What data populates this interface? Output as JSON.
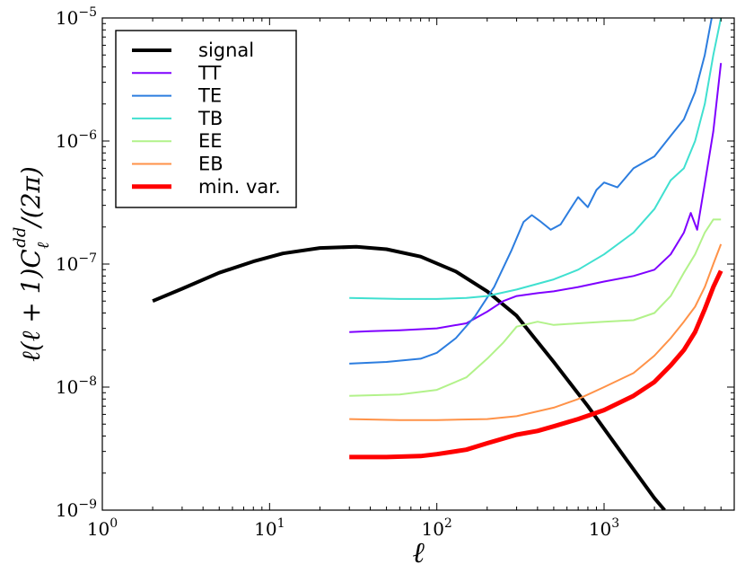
{
  "chart_data": {
    "type": "line",
    "xscale": "log",
    "yscale": "log",
    "xlim": [
      1,
      6000
    ],
    "ylim": [
      1e-09,
      1e-05
    ],
    "xlabel": "ℓ",
    "ylabel": "ℓ(ℓ + 1)C_ℓ^dd/(2π)",
    "xticks": [
      {
        "value": 1,
        "mantissa": "10",
        "exp": "0"
      },
      {
        "value": 10,
        "mantissa": "10",
        "exp": "1"
      },
      {
        "value": 100,
        "mantissa": "10",
        "exp": "2"
      },
      {
        "value": 1000,
        "mantissa": "10",
        "exp": "3"
      }
    ],
    "yticks": [
      {
        "value": 1e-09,
        "mantissa": "10",
        "exp": "−9"
      },
      {
        "value": 1e-08,
        "mantissa": "10",
        "exp": "−8"
      },
      {
        "value": 1e-07,
        "mantissa": "10",
        "exp": "−7"
      },
      {
        "value": 1e-06,
        "mantissa": "10",
        "exp": "−6"
      },
      {
        "value": 1e-05,
        "mantissa": "10",
        "exp": "−5"
      }
    ],
    "legend_position": "top-left",
    "series": [
      {
        "name": "signal",
        "color": "#000000",
        "width": 4,
        "x": [
          2,
          3,
          5,
          8,
          12,
          20,
          33,
          50,
          80,
          130,
          200,
          300,
          500,
          800,
          1300,
          2000,
          2300
        ],
        "y": [
          5e-08,
          6.3e-08,
          8.5e-08,
          1.05e-07,
          1.22e-07,
          1.35e-07,
          1.38e-07,
          1.32e-07,
          1.15e-07,
          8.7e-08,
          6e-08,
          3.8e-08,
          1.6e-08,
          7e-09,
          2.8e-09,
          1.25e-09,
          1e-09
        ]
      },
      {
        "name": "TT",
        "color": "#7f00ff",
        "width": 2,
        "x": [
          30,
          40,
          60,
          100,
          150,
          200,
          250,
          300,
          400,
          500,
          700,
          1000,
          1500,
          2000,
          2500,
          3000,
          3300,
          3600,
          4000,
          4500,
          5000
        ],
        "y": [
          2.8e-08,
          2.85e-08,
          2.9e-08,
          3e-08,
          3.3e-08,
          4.1e-08,
          5e-08,
          5.5e-08,
          5.8e-08,
          6e-08,
          6.5e-08,
          7.2e-08,
          8e-08,
          9e-08,
          1.2e-07,
          1.8e-07,
          2.6e-07,
          1.9e-07,
          4.5e-07,
          1.2e-06,
          4.3e-06
        ]
      },
      {
        "name": "TE",
        "color": "#2c7ddf",
        "width": 2,
        "x": [
          30,
          50,
          80,
          100,
          130,
          170,
          220,
          280,
          330,
          370,
          420,
          480,
          550,
          650,
          700,
          800,
          900,
          1000,
          1200,
          1500,
          2000,
          2500,
          3000,
          3500,
          4000,
          4400
        ],
        "y": [
          1.55e-08,
          1.6e-08,
          1.7e-08,
          1.9e-08,
          2.5e-08,
          3.8e-08,
          6.5e-08,
          1.3e-07,
          2.2e-07,
          2.5e-07,
          2.2e-07,
          1.9e-07,
          2.1e-07,
          3e-07,
          3.5e-07,
          2.9e-07,
          4e-07,
          4.6e-07,
          4.2e-07,
          6e-07,
          7.5e-07,
          1.1e-06,
          1.5e-06,
          2.5e-06,
          5e-06,
          1e-05
        ]
      },
      {
        "name": "TB",
        "color": "#40e0d0",
        "width": 2,
        "x": [
          30,
          60,
          100,
          150,
          200,
          300,
          500,
          700,
          1000,
          1500,
          2000,
          2500,
          3000,
          3500,
          4000,
          4500,
          5000
        ],
        "y": [
          5.3e-08,
          5.2e-08,
          5.2e-08,
          5.3e-08,
          5.5e-08,
          6.2e-08,
          7.5e-08,
          9e-08,
          1.2e-07,
          1.8e-07,
          2.8e-07,
          4.8e-07,
          6e-07,
          1e-06,
          2e-06,
          5e-06,
          1e-05
        ]
      },
      {
        "name": "EE",
        "color": "#b2f28a",
        "width": 2,
        "x": [
          30,
          60,
          100,
          150,
          200,
          250,
          300,
          400,
          500,
          700,
          1000,
          1500,
          2000,
          2500,
          3000,
          3500,
          4000,
          4500,
          5000
        ],
        "y": [
          8.5e-09,
          8.7e-09,
          9.5e-09,
          1.2e-08,
          1.7e-08,
          2.3e-08,
          3.1e-08,
          3.4e-08,
          3.2e-08,
          3.3e-08,
          3.4e-08,
          3.5e-08,
          4e-08,
          5.5e-08,
          8.5e-08,
          1.2e-07,
          1.8e-07,
          2.3e-07,
          2.3e-07
        ]
      },
      {
        "name": "EB",
        "color": "#ff9248",
        "width": 2,
        "x": [
          30,
          60,
          100,
          200,
          300,
          500,
          700,
          1000,
          1500,
          2000,
          2500,
          3000,
          3500,
          4000,
          4500,
          5000
        ],
        "y": [
          5.5e-09,
          5.4e-09,
          5.4e-09,
          5.5e-09,
          5.8e-09,
          6.8e-09,
          8e-09,
          1e-08,
          1.3e-08,
          1.8e-08,
          2.5e-08,
          3.4e-08,
          4.5e-08,
          6.5e-08,
          1e-07,
          1.45e-07
        ]
      },
      {
        "name": "min. var.",
        "color": "#ff0000",
        "width": 5,
        "x": [
          30,
          50,
          80,
          100,
          150,
          200,
          300,
          400,
          500,
          700,
          1000,
          1500,
          2000,
          2500,
          3000,
          3500,
          4000,
          4500,
          5000
        ],
        "y": [
          2.7e-09,
          2.7e-09,
          2.75e-09,
          2.85e-09,
          3.1e-09,
          3.5e-09,
          4.1e-09,
          4.4e-09,
          4.8e-09,
          5.5e-09,
          6.5e-09,
          8.5e-09,
          1.1e-08,
          1.5e-08,
          2e-08,
          2.8e-08,
          4.3e-08,
          6.5e-08,
          8.8e-08
        ]
      }
    ]
  }
}
